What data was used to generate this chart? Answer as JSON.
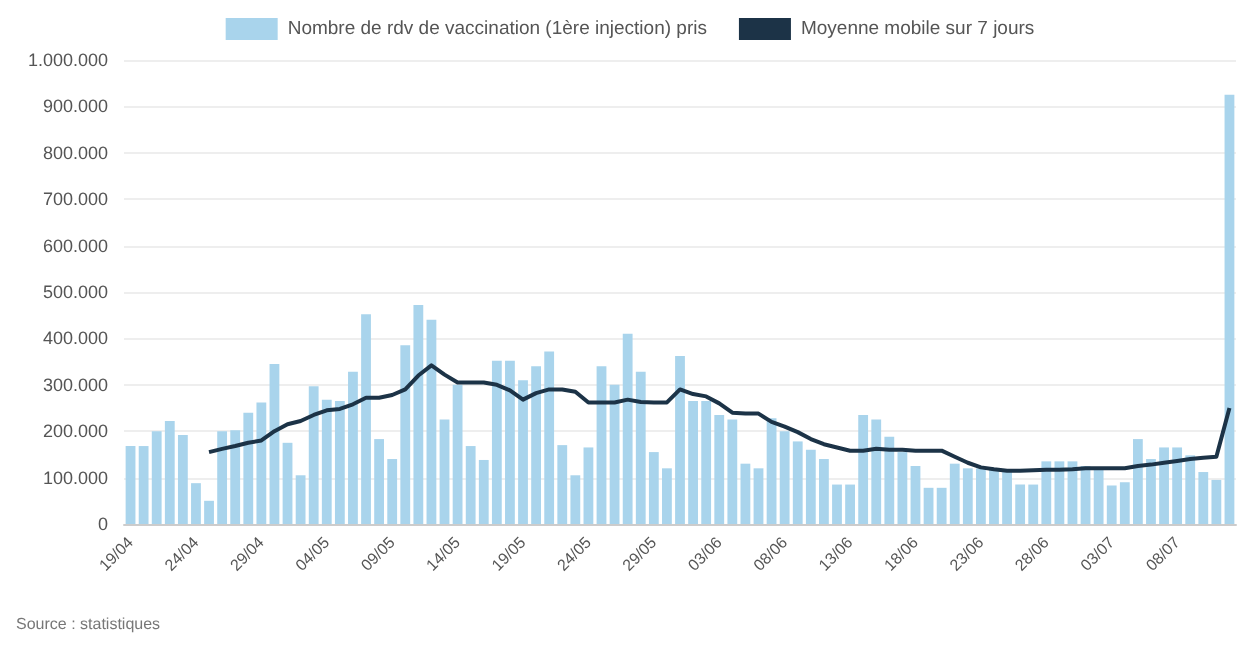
{
  "chart_data": {
    "type": "bar",
    "categories": [
      "19/04",
      null,
      null,
      null,
      null,
      "24/04",
      null,
      null,
      null,
      null,
      "29/04",
      null,
      null,
      null,
      null,
      "04/05",
      null,
      null,
      null,
      null,
      "09/05",
      null,
      null,
      null,
      null,
      "14/05",
      null,
      null,
      null,
      null,
      "19/05",
      null,
      null,
      null,
      null,
      "24/05",
      null,
      null,
      null,
      null,
      "29/05",
      null,
      null,
      null,
      null,
      "03/06",
      null,
      null,
      null,
      null,
      "08/06",
      null,
      null,
      null,
      null,
      "13/06",
      null,
      null,
      null,
      null,
      "18/06",
      null,
      null,
      null,
      null,
      "23/06",
      null,
      null,
      null,
      null,
      "28/06",
      null,
      null,
      null,
      null,
      "03/07",
      null,
      null,
      null,
      null,
      "08/07",
      null,
      null,
      null,
      null
    ],
    "series": [
      {
        "name": "Nombre de rdv de vaccination (1ère injection) pris",
        "color": "#a9d4ec",
        "values": [
          168000,
          168000,
          200000,
          222000,
          192000,
          88000,
          50000,
          200000,
          202000,
          240000,
          262000,
          345000,
          175000,
          105000,
          297000,
          268000,
          265000,
          328000,
          452000,
          183000,
          140000,
          385000,
          472000,
          440000,
          225000,
          300000,
          168000,
          138000,
          352000,
          352000,
          310000,
          340000,
          372000,
          170000,
          105000,
          165000,
          340000,
          300000,
          410000,
          328000,
          155000,
          120000,
          362000,
          265000,
          265000,
          235000,
          225000,
          130000,
          120000,
          228000,
          200000,
          178000,
          160000,
          140000,
          85000,
          85000,
          235000,
          225000,
          188000,
          155000,
          125000,
          78000,
          78000,
          130000,
          120000,
          120000,
          120000,
          115000,
          85000,
          85000,
          135000,
          135000,
          135000,
          125000,
          120000,
          83000,
          90000,
          183000,
          140000,
          165000,
          165000,
          148000,
          112000,
          95000,
          925000
        ]
      },
      {
        "name": "Moyenne mobile sur 7 jours",
        "type": "line",
        "color": "#1c3347",
        "values": [
          null,
          null,
          null,
          null,
          null,
          null,
          155000,
          162000,
          168000,
          175000,
          180000,
          200000,
          215000,
          222000,
          235000,
          245000,
          248000,
          258000,
          272000,
          272000,
          278000,
          290000,
          320000,
          342000,
          322000,
          305000,
          305000,
          305000,
          300000,
          288000,
          268000,
          282000,
          290000,
          290000,
          285000,
          262000,
          262000,
          262000,
          268000,
          263000,
          262000,
          262000,
          290000,
          280000,
          275000,
          260000,
          240000,
          238000,
          238000,
          220000,
          210000,
          198000,
          183000,
          172000,
          165000,
          158000,
          158000,
          162000,
          160000,
          160000,
          158000,
          158000,
          158000,
          145000,
          132000,
          122000,
          118000,
          115000,
          115000,
          116000,
          117000,
          117000,
          118000,
          120000,
          120000,
          120000,
          120000,
          125000,
          128000,
          132000,
          136000,
          140000,
          143000,
          145000,
          250000
        ]
      }
    ],
    "ylim": [
      0,
      1000000
    ],
    "yticks": [
      {
        "value": 0,
        "label": "0"
      },
      {
        "value": 100000,
        "label": "100.000"
      },
      {
        "value": 200000,
        "label": "200.000"
      },
      {
        "value": 300000,
        "label": "300.000"
      },
      {
        "value": 400000,
        "label": "400.000"
      },
      {
        "value": 500000,
        "label": "500.000"
      },
      {
        "value": 600000,
        "label": "600.000"
      },
      {
        "value": 700000,
        "label": "700.000"
      },
      {
        "value": 800000,
        "label": "800.000"
      },
      {
        "value": 900000,
        "label": "900.000"
      },
      {
        "value": 1000000,
        "label": "1.000.000"
      }
    ],
    "grid": "y",
    "legend": "top",
    "marker": "none",
    "annotations": [
      "Source : statistiques"
    ]
  }
}
